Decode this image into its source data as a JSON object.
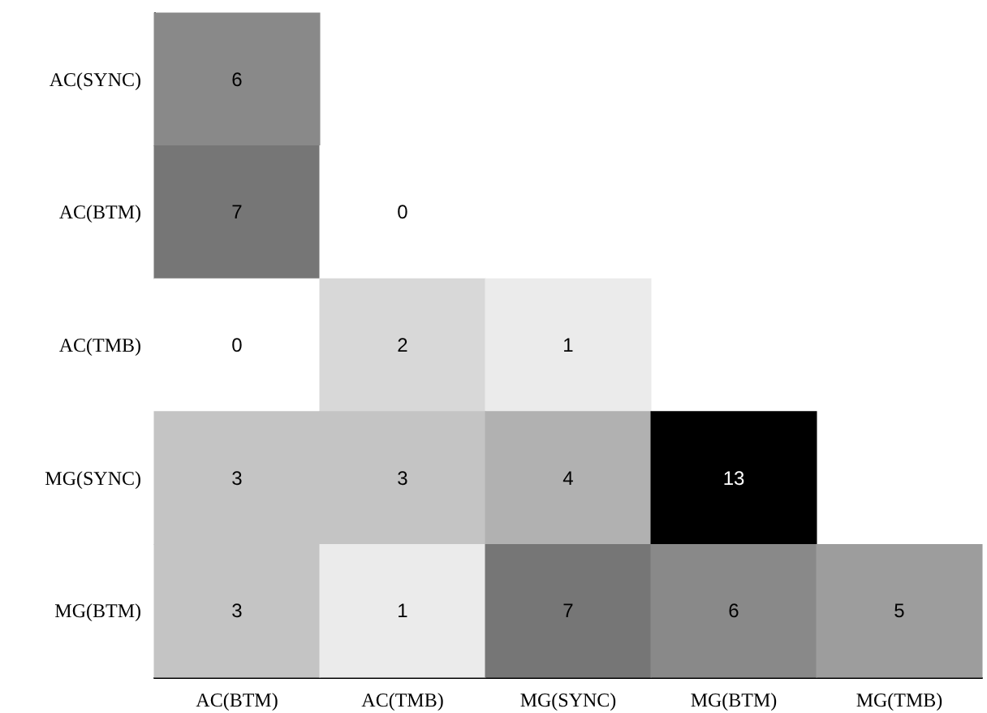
{
  "chart_data": {
    "type": "heatmap",
    "categories": [
      "AC(BTM)",
      "AC(TMB)",
      "MG(SYNC)",
      "MG(BTM)",
      "MG(TMB)"
    ],
    "y_categories": [
      "AC(SYNC)",
      "AC(BTM)",
      "AC(TMB)",
      "MG(SYNC)",
      "MG(BTM)"
    ],
    "cells": [
      [
        6,
        null,
        null,
        null,
        null
      ],
      [
        7,
        0,
        null,
        null,
        null
      ],
      [
        0,
        2,
        1,
        null,
        null
      ],
      [
        3,
        3,
        4,
        13,
        null
      ],
      [
        3,
        1,
        7,
        6,
        5
      ]
    ],
    "data_labels": true
  }
}
